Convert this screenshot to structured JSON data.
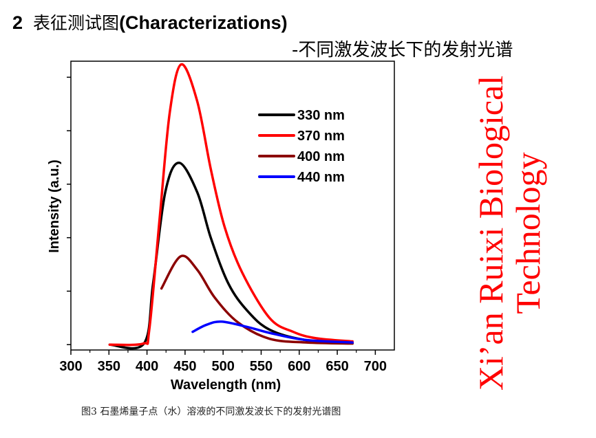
{
  "header": {
    "number": "2",
    "title_cn": "表征测试图",
    "title_en": "(Characterizations)",
    "subtitle": "-不同激发波长下的发射光谱"
  },
  "caption": "图3  石墨烯量子点（水）溶液的不同激发波长下的发射光谱图",
  "watermark": "Xi’an Ruixi Biological Technology",
  "chart_data": {
    "type": "line",
    "title": "",
    "xlabel": "Wavelength (nm)",
    "ylabel": "Intensity (a.u.)",
    "xlim": [
      300,
      725
    ],
    "ylim": [
      -0.1,
      5.3
    ],
    "xticks": [
      300,
      350,
      400,
      450,
      500,
      550,
      600,
      650,
      700
    ],
    "yticks": [
      0,
      1,
      2,
      3,
      4,
      5
    ],
    "grid": false,
    "legend_position": "top-right",
    "series": [
      {
        "name": "330 nm",
        "color": "#000000",
        "x": [
          351,
          396,
          408,
          424,
          442,
          466,
          484,
          507,
          532,
          561,
          607,
          670
        ],
        "y": [
          0,
          0.02,
          1.14,
          2.85,
          3.4,
          2.85,
          1.99,
          1.14,
          0.63,
          0.28,
          0.09,
          0.03
        ]
      },
      {
        "name": "370 nm",
        "color": "#ff0000",
        "x": [
          351,
          395,
          403,
          417,
          430,
          445,
          466,
          484,
          502,
          525,
          561,
          592,
          622,
          670
        ],
        "y": [
          0,
          0.02,
          0.28,
          2.42,
          4.35,
          5.24,
          4.55,
          3.27,
          2.2,
          1.35,
          0.5,
          0.24,
          0.12,
          0.06
        ]
      },
      {
        "name": "400 nm",
        "color": "#8b0000",
        "x": [
          419,
          444,
          466,
          489,
          520,
          561,
          610,
          670
        ],
        "y": [
          1.05,
          1.65,
          1.4,
          0.88,
          0.41,
          0.11,
          0.04,
          0.02
        ]
      },
      {
        "name": "440 nm",
        "color": "#0000ff",
        "x": [
          460,
          478,
          498,
          532,
          561,
          607,
          670
        ],
        "y": [
          0.24,
          0.37,
          0.43,
          0.33,
          0.22,
          0.09,
          0.04
        ]
      }
    ]
  }
}
